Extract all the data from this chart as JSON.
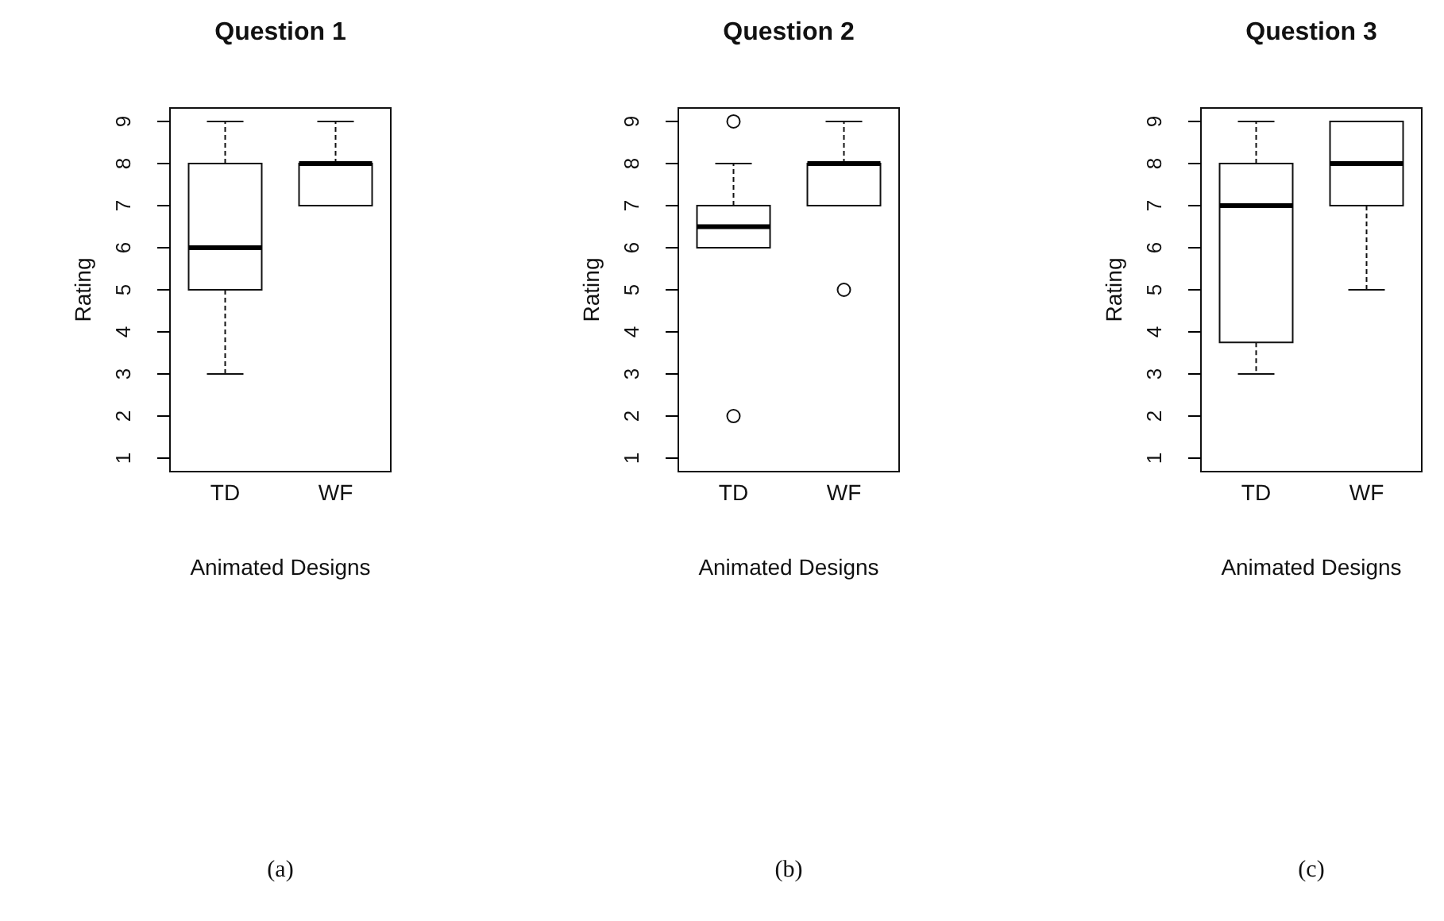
{
  "chart_data": [
    {
      "type": "box",
      "title": "Question 1",
      "xlabel": "Animated Designs",
      "ylabel": "Rating",
      "categories": [
        "TD",
        "WF"
      ],
      "ylim": [
        0.68,
        9.32
      ],
      "yticks": [
        1,
        2,
        3,
        4,
        5,
        6,
        7,
        8,
        9
      ],
      "annotations": [
        "(a)"
      ],
      "boxes": [
        {
          "low": 3,
          "q1": 5,
          "median": 6,
          "q3": 8,
          "high": 9
        },
        {
          "low": 7,
          "q1": 7,
          "median": 8,
          "q3": 8,
          "high": 9
        }
      ]
    },
    {
      "type": "box",
      "title": "Question 2",
      "xlabel": "Animated Designs",
      "ylabel": "Rating",
      "categories": [
        "TD",
        "WF"
      ],
      "ylim": [
        0.68,
        9.32
      ],
      "yticks": [
        1,
        2,
        3,
        4,
        5,
        6,
        7,
        8,
        9
      ],
      "annotations": [
        "(b)"
      ],
      "boxes": [
        {
          "low": 6,
          "q1": 6,
          "median": 6.5,
          "q3": 7,
          "high": 8,
          "outliers": [
            9,
            2
          ]
        },
        {
          "low": 7,
          "q1": 7,
          "median": 8,
          "q3": 8,
          "high": 9,
          "outliers": [
            5
          ]
        }
      ]
    },
    {
      "type": "box",
      "title": "Question 3",
      "xlabel": "Animated Designs",
      "ylabel": "Rating",
      "categories": [
        "TD",
        "WF"
      ],
      "ylim": [
        0.68,
        9.32
      ],
      "yticks": [
        1,
        2,
        3,
        4,
        5,
        6,
        7,
        8,
        9
      ],
      "annotations": [
        "(c)"
      ],
      "boxes": [
        {
          "low": 3,
          "q1": 3.75,
          "median": 7,
          "q3": 8,
          "high": 9
        },
        {
          "low": 5,
          "q1": 7,
          "median": 8,
          "q3": 9,
          "high": 9
        }
      ]
    }
  ]
}
